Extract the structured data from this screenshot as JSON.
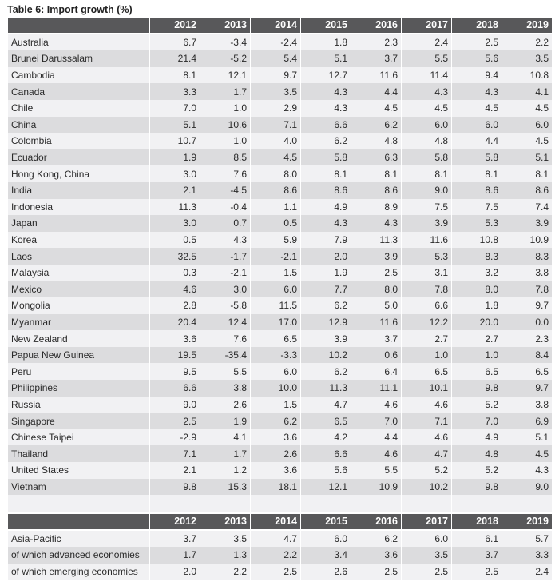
{
  "title": "Table 6: Import growth (%)",
  "years": [
    "2012",
    "2013",
    "2014",
    "2015",
    "2016",
    "2017",
    "2018",
    "2019"
  ],
  "economies": [
    {
      "name": "Australia",
      "values": [
        "6.7",
        "-3.4",
        "-2.4",
        "1.8",
        "2.3",
        "2.4",
        "2.5",
        "2.2"
      ]
    },
    {
      "name": "Brunei Darussalam",
      "values": [
        "21.4",
        "-5.2",
        "5.4",
        "5.1",
        "3.7",
        "5.5",
        "5.6",
        "3.5"
      ]
    },
    {
      "name": "Cambodia",
      "values": [
        "8.1",
        "12.1",
        "9.7",
        "12.7",
        "11.6",
        "11.4",
        "9.4",
        "10.8"
      ]
    },
    {
      "name": "Canada",
      "values": [
        "3.3",
        "1.7",
        "3.5",
        "4.3",
        "4.4",
        "4.3",
        "4.3",
        "4.1"
      ]
    },
    {
      "name": "Chile",
      "values": [
        "7.0",
        "1.0",
        "2.9",
        "4.3",
        "4.5",
        "4.5",
        "4.5",
        "4.5"
      ]
    },
    {
      "name": "China",
      "values": [
        "5.1",
        "10.6",
        "7.1",
        "6.6",
        "6.2",
        "6.0",
        "6.0",
        "6.0"
      ]
    },
    {
      "name": "Colombia",
      "values": [
        "10.7",
        "1.0",
        "4.0",
        "6.2",
        "4.8",
        "4.8",
        "4.4",
        "4.5"
      ]
    },
    {
      "name": "Ecuador",
      "values": [
        "1.9",
        "8.5",
        "4.5",
        "5.8",
        "6.3",
        "5.8",
        "5.8",
        "5.1"
      ]
    },
    {
      "name": "Hong Kong, China",
      "values": [
        "3.0",
        "7.6",
        "8.0",
        "8.1",
        "8.1",
        "8.1",
        "8.1",
        "8.1"
      ]
    },
    {
      "name": "India",
      "values": [
        "2.1",
        "-4.5",
        "8.6",
        "8.6",
        "8.6",
        "9.0",
        "8.6",
        "8.6"
      ]
    },
    {
      "name": "Indonesia",
      "values": [
        "11.3",
        "-0.4",
        "1.1",
        "4.9",
        "8.9",
        "7.5",
        "7.5",
        "7.4"
      ]
    },
    {
      "name": "Japan",
      "values": [
        "3.0",
        "0.7",
        "0.5",
        "4.3",
        "4.3",
        "3.9",
        "5.3",
        "3.9"
      ]
    },
    {
      "name": "Korea",
      "values": [
        "0.5",
        "4.3",
        "5.9",
        "7.9",
        "11.3",
        "11.6",
        "10.8",
        "10.9"
      ]
    },
    {
      "name": "Laos",
      "values": [
        "32.5",
        "-1.7",
        "-2.1",
        "2.0",
        "3.9",
        "5.3",
        "8.3",
        "8.3"
      ]
    },
    {
      "name": "Malaysia",
      "values": [
        "0.3",
        "-2.1",
        "1.5",
        "1.9",
        "2.5",
        "3.1",
        "3.2",
        "3.8"
      ]
    },
    {
      "name": "Mexico",
      "values": [
        "4.6",
        "3.0",
        "6.0",
        "7.7",
        "8.0",
        "7.8",
        "8.0",
        "7.8"
      ]
    },
    {
      "name": "Mongolia",
      "values": [
        "2.8",
        "-5.8",
        "11.5",
        "6.2",
        "5.0",
        "6.6",
        "1.8",
        "9.7"
      ]
    },
    {
      "name": "Myanmar",
      "values": [
        "20.4",
        "12.4",
        "17.0",
        "12.9",
        "11.6",
        "12.2",
        "20.0",
        "0.0"
      ]
    },
    {
      "name": "New Zealand",
      "values": [
        "3.6",
        "7.6",
        "6.5",
        "3.9",
        "3.7",
        "2.7",
        "2.7",
        "2.3"
      ]
    },
    {
      "name": "Papua New Guinea",
      "values": [
        "19.5",
        "-35.4",
        "-3.3",
        "10.2",
        "0.6",
        "1.0",
        "1.0",
        "8.4"
      ]
    },
    {
      "name": "Peru",
      "values": [
        "9.5",
        "5.5",
        "6.0",
        "6.2",
        "6.4",
        "6.5",
        "6.5",
        "6.5"
      ]
    },
    {
      "name": "Philippines",
      "values": [
        "6.6",
        "3.8",
        "10.0",
        "11.3",
        "11.1",
        "10.1",
        "9.8",
        "9.7"
      ]
    },
    {
      "name": "Russia",
      "values": [
        "9.0",
        "2.6",
        "1.5",
        "4.7",
        "4.6",
        "4.6",
        "5.2",
        "3.8"
      ]
    },
    {
      "name": "Singapore",
      "values": [
        "2.5",
        "1.9",
        "6.2",
        "6.5",
        "7.0",
        "7.1",
        "7.0",
        "6.9"
      ]
    },
    {
      "name": "Chinese Taipei",
      "values": [
        "-2.9",
        "4.1",
        "3.6",
        "4.2",
        "4.4",
        "4.6",
        "4.9",
        "5.1"
      ]
    },
    {
      "name": "Thailand",
      "values": [
        "7.1",
        "1.7",
        "2.6",
        "6.6",
        "4.6",
        "4.7",
        "4.8",
        "4.5"
      ]
    },
    {
      "name": "United States",
      "values": [
        "2.1",
        "1.2",
        "3.6",
        "5.6",
        "5.5",
        "5.2",
        "5.2",
        "4.3"
      ]
    },
    {
      "name": "Vietnam",
      "values": [
        "9.8",
        "15.3",
        "18.1",
        "12.1",
        "10.9",
        "10.2",
        "9.8",
        "9.0"
      ]
    }
  ],
  "aggregates": [
    {
      "name": "Asia-Pacific",
      "values": [
        "3.7",
        "3.5",
        "4.7",
        "6.0",
        "6.2",
        "6.0",
        "6.1",
        "5.7"
      ]
    },
    {
      "name": "of which advanced economies",
      "values": [
        "1.7",
        "1.3",
        "2.2",
        "3.4",
        "3.6",
        "3.5",
        "3.7",
        "3.3"
      ]
    },
    {
      "name": "of which emerging economies",
      "values": [
        "2.0",
        "2.2",
        "2.5",
        "2.6",
        "2.5",
        "2.5",
        "2.5",
        "2.4"
      ]
    }
  ]
}
